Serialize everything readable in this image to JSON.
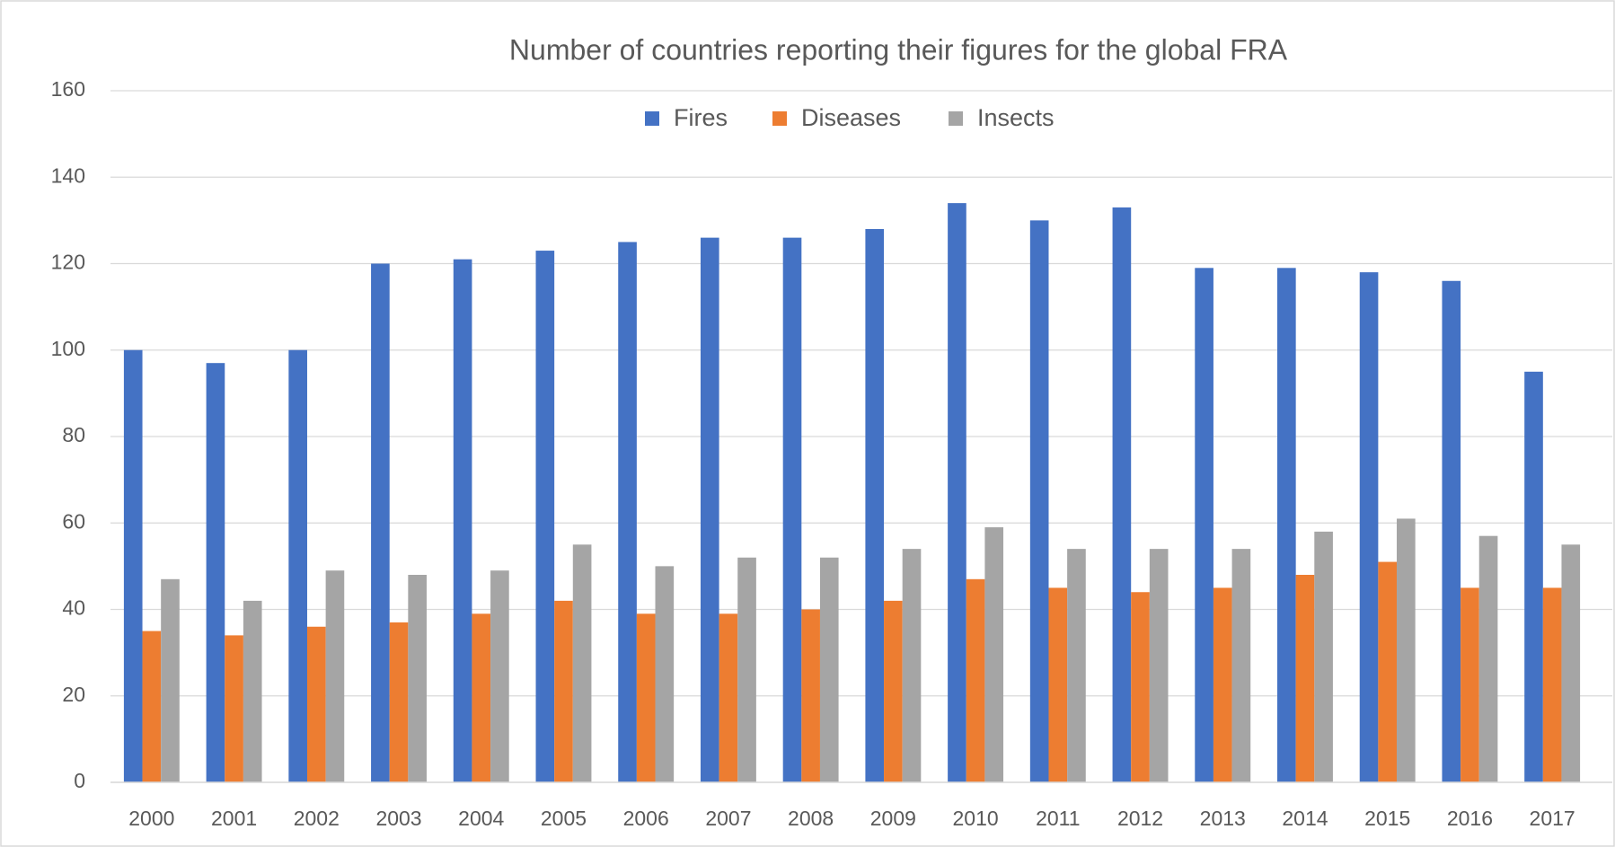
{
  "chart_data": {
    "type": "bar",
    "title": "Number of countries reporting their figures for the global FRA",
    "categories": [
      "2000",
      "2001",
      "2002",
      "2003",
      "2004",
      "2005",
      "2006",
      "2007",
      "2008",
      "2009",
      "2010",
      "2011",
      "2012",
      "2013",
      "2014",
      "2015",
      "2016",
      "2017"
    ],
    "series": [
      {
        "name": "Fires",
        "color": "#4472c4",
        "values": [
          100,
          97,
          100,
          120,
          121,
          123,
          125,
          126,
          126,
          128,
          134,
          130,
          133,
          119,
          119,
          118,
          116,
          95
        ]
      },
      {
        "name": "Diseases",
        "color": "#ed7d31",
        "values": [
          35,
          34,
          36,
          37,
          39,
          42,
          39,
          39,
          40,
          42,
          47,
          45,
          44,
          45,
          48,
          51,
          45,
          45
        ]
      },
      {
        "name": "Insects",
        "color": "#a5a5a5",
        "values": [
          47,
          42,
          49,
          48,
          49,
          55,
          50,
          52,
          52,
          54,
          59,
          54,
          54,
          54,
          58,
          61,
          57,
          55
        ]
      }
    ],
    "ylim": [
      0,
      160
    ],
    "yticks": [
      0,
      20,
      40,
      60,
      80,
      100,
      120,
      140,
      160
    ],
    "grid": true,
    "legend": "top"
  }
}
